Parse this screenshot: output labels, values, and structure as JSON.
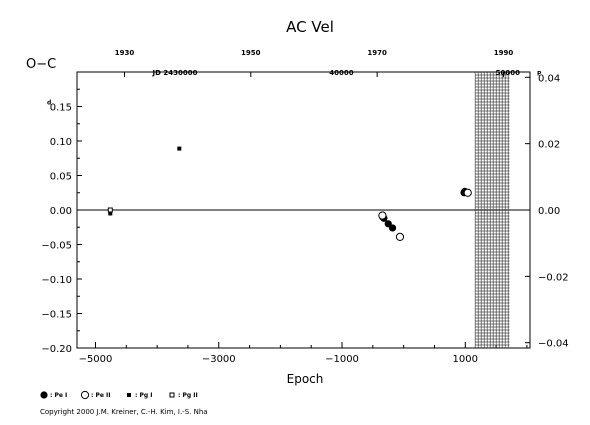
{
  "chart_data": {
    "type": "scatter",
    "title": "AC Vel",
    "ylabel": "O−C",
    "xlabel": "Epoch",
    "xlim": [
      -5300,
      2050
    ],
    "ylim": [
      -0.2,
      0.2
    ],
    "y2lim": [
      -0.0416,
      0.0416
    ],
    "grid": false,
    "legend_position": "bottom-left",
    "x_ticks": [
      {
        "value": -5000,
        "label": "−5000"
      },
      {
        "value": -3000,
        "label": "−3000"
      },
      {
        "value": -1000,
        "label": "−1000"
      },
      {
        "value": 1000,
        "label": "1000"
      }
    ],
    "y_ticks": [
      {
        "value": 0.15,
        "label": "0.15",
        "prefix": "d"
      },
      {
        "value": 0.1,
        "label": "0.10"
      },
      {
        "value": 0.05,
        "label": "0.05"
      },
      {
        "value": 0.0,
        "label": "0.00"
      },
      {
        "value": -0.05,
        "label": "−0.05"
      },
      {
        "value": -0.1,
        "label": "−0.10"
      },
      {
        "value": -0.15,
        "label": "−0.15"
      },
      {
        "value": -0.2,
        "label": "−0.20"
      }
    ],
    "y2_ticks": [
      {
        "value": 0.04,
        "label": "0.04",
        "prefix": "P"
      },
      {
        "value": 0.02,
        "label": "0.02"
      },
      {
        "value": 0.0,
        "label": "0.00"
      },
      {
        "value": -0.02,
        "label": "−0.02"
      },
      {
        "value": -0.04,
        "label": "−0.04"
      }
    ],
    "top_year_ticks": [
      {
        "epoch": -4530,
        "label": "1930"
      },
      {
        "epoch": -2480,
        "label": "1950"
      },
      {
        "epoch": -430,
        "label": "1970"
      },
      {
        "epoch": 1620,
        "label": "1990"
      }
    ],
    "top_jd_ticks": [
      {
        "epoch": -3710,
        "label": "JD 2430000"
      },
      {
        "epoch": -1010,
        "label": "40000"
      },
      {
        "epoch": 1690,
        "label": "50000"
      }
    ],
    "shaded_region": {
      "from": 1160,
      "to": 1720
    },
    "zero_line": true,
    "series": [
      {
        "name": "Pe I",
        "marker": "filled-circle",
        "points": [
          {
            "x": -340,
            "y": -0.01
          },
          {
            "x": -320,
            "y": -0.012
          },
          {
            "x": -250,
            "y": -0.02
          },
          {
            "x": -180,
            "y": -0.026
          },
          {
            "x": 980,
            "y": 0.025
          },
          {
            "x": 990,
            "y": 0.027
          }
        ]
      },
      {
        "name": "Pe II",
        "marker": "open-circle",
        "points": [
          {
            "x": -345,
            "y": -0.008
          },
          {
            "x": -60,
            "y": -0.039
          },
          {
            "x": 1040,
            "y": 0.025
          }
        ]
      },
      {
        "name": "Pg I",
        "marker": "filled-square",
        "points": [
          {
            "x": -4760,
            "y": -0.005
          },
          {
            "x": -3640,
            "y": 0.089
          }
        ]
      },
      {
        "name": "Pg II",
        "marker": "open-square",
        "points": [
          {
            "x": -4760,
            "y": 0.0
          }
        ]
      }
    ],
    "legend": [
      {
        "marker": "filled-circle",
        "label": ": Pe I"
      },
      {
        "marker": "open-circle",
        "label": ": Pe II"
      },
      {
        "marker": "filled-square",
        "label": ": Pg I"
      },
      {
        "marker": "open-square",
        "label": ": Pg II"
      }
    ]
  },
  "copyright": "Copyright 2000 J.M. Kreiner, C.-H. Kim, I.-S. Nha"
}
